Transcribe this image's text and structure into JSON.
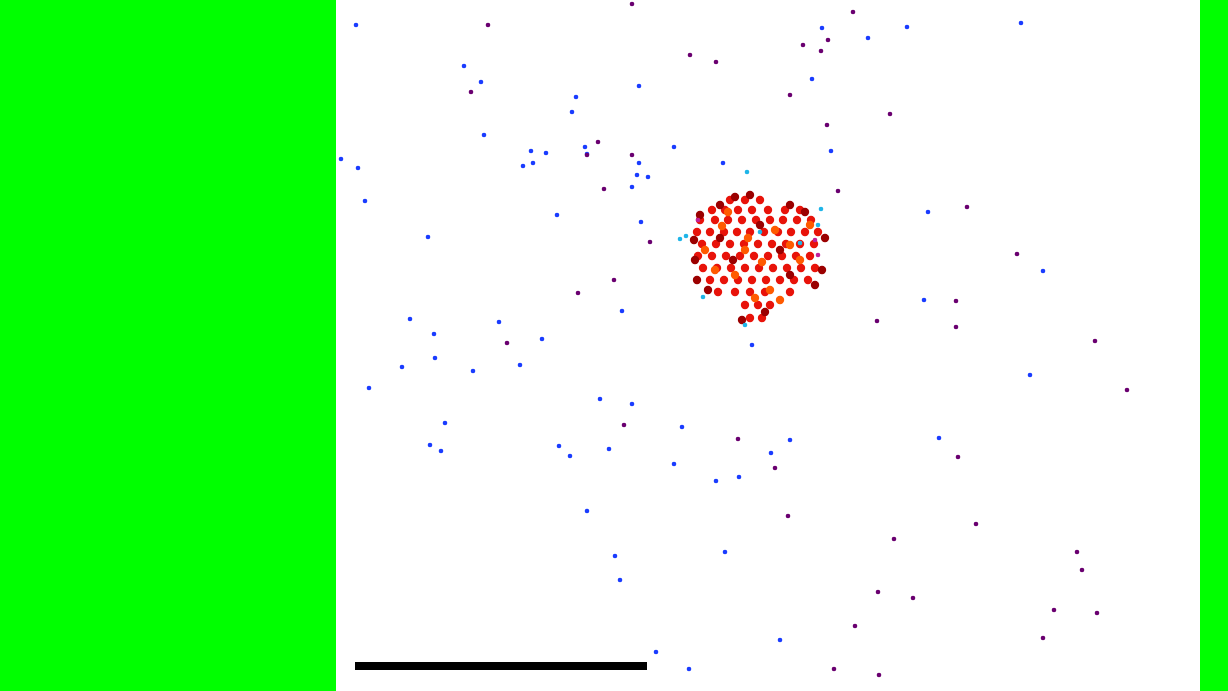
{
  "chart_data": {
    "type": "scatter",
    "xlim": [
      336,
      1200
    ],
    "ylim": [
      691,
      0
    ],
    "tick_labels": false,
    "grid": false,
    "series": [
      {
        "color": "#1a3cff",
        "marker": "dot",
        "x": [
          356,
          464,
          481,
          576,
          572,
          484,
          341,
          358,
          531,
          546,
          523,
          533,
          585,
          587,
          639,
          639,
          637,
          648,
          632,
          674,
          723,
          812,
          822,
          868,
          907,
          1021,
          831,
          365,
          428,
          557,
          641,
          622,
          410,
          434,
          499,
          542,
          435,
          402,
          473,
          520,
          369,
          445,
          430,
          441,
          559,
          570,
          600,
          632,
          609,
          682,
          674,
          716,
          739,
          771,
          790,
          587,
          615,
          620,
          725,
          656,
          689,
          780,
          752,
          928,
          924,
          1043,
          1030,
          939
        ],
        "values": [
          25,
          66,
          82,
          97,
          112,
          135,
          159,
          168,
          151,
          153,
          166,
          163,
          147,
          154,
          86,
          163,
          175,
          177,
          187,
          147,
          163,
          79,
          28,
          38,
          27,
          23,
          151,
          201,
          237,
          215,
          222,
          311,
          319,
          334,
          322,
          339,
          358,
          367,
          371,
          365,
          388,
          423,
          445,
          451,
          446,
          456,
          399,
          404,
          449,
          427,
          464,
          481,
          477,
          453,
          440,
          511,
          556,
          580,
          552,
          652,
          669,
          640,
          345,
          212,
          300,
          271,
          375,
          438
        ]
      },
      {
        "color": "#6a0070",
        "marker": "dot",
        "x": [
          488,
          632,
          690,
          716,
          803,
          828,
          821,
          853,
          790,
          827,
          890,
          471,
          598,
          587,
          632,
          604,
          838,
          967,
          650,
          614,
          578,
          1017,
          956,
          956,
          877,
          1095,
          1127,
          507,
          624,
          738,
          775,
          958,
          788,
          894,
          976,
          878,
          913,
          855,
          834,
          879,
          1077,
          1082,
          1054,
          1097,
          1043
        ],
        "values": [
          25,
          4,
          55,
          62,
          45,
          40,
          51,
          12,
          95,
          125,
          114,
          92,
          142,
          155,
          155,
          189,
          191,
          207,
          242,
          280,
          293,
          254,
          301,
          327,
          321,
          341,
          390,
          343,
          425,
          439,
          468,
          457,
          516,
          539,
          524,
          592,
          598,
          626,
          669,
          675,
          552,
          570,
          610,
          613,
          638
        ]
      },
      {
        "color": "#e8130a",
        "marker": "circle",
        "x": [
          730,
          745,
          760,
          712,
          725,
          738,
          752,
          768,
          785,
          800,
          700,
          715,
          728,
          742,
          756,
          770,
          783,
          797,
          811,
          697,
          710,
          724,
          737,
          750,
          764,
          778,
          791,
          805,
          818,
          702,
          716,
          730,
          744,
          758,
          772,
          786,
          800,
          814,
          698,
          712,
          726,
          740,
          754,
          768,
          782,
          796,
          810,
          703,
          717,
          731,
          745,
          759,
          773,
          787,
          801,
          815,
          710,
          724,
          738,
          752,
          766,
          780,
          794,
          808,
          718,
          735,
          750,
          765,
          790,
          745,
          758,
          770,
          750,
          762
        ],
        "values": [
          200,
          200,
          200,
          210,
          210,
          210,
          210,
          210,
          210,
          210,
          220,
          220,
          220,
          220,
          220,
          220,
          220,
          220,
          220,
          232,
          232,
          232,
          232,
          232,
          232,
          232,
          232,
          232,
          232,
          244,
          244,
          244,
          244,
          244,
          244,
          244,
          244,
          244,
          256,
          256,
          256,
          256,
          256,
          256,
          256,
          256,
          256,
          268,
          268,
          268,
          268,
          268,
          268,
          268,
          268,
          268,
          280,
          280,
          280,
          280,
          280,
          280,
          280,
          280,
          292,
          292,
          292,
          292,
          292,
          305,
          305,
          305,
          318,
          318
        ]
      },
      {
        "color": "#9b0000",
        "marker": "circle",
        "x": [
          735,
          750,
          720,
          700,
          694,
          695,
          697,
          825,
          822,
          815,
          805,
          790,
          742,
          765,
          708,
          760,
          733,
          780,
          720,
          790
        ],
        "values": [
          197,
          195,
          205,
          215,
          240,
          260,
          280,
          238,
          270,
          285,
          212,
          205,
          320,
          312,
          290,
          225,
          260,
          250,
          238,
          275
        ]
      },
      {
        "color": "#ff5a00",
        "marker": "circle",
        "x": [
          722,
          748,
          775,
          705,
          762,
          790,
          735,
          770,
          780,
          755,
          800,
          715,
          745,
          810,
          728
        ],
        "values": [
          226,
          238,
          230,
          250,
          262,
          245,
          275,
          290,
          300,
          298,
          260,
          270,
          250,
          225,
          212
        ]
      },
      {
        "color": "#c0209a",
        "marker": "dot",
        "x": [
          815,
          698,
          818
        ],
        "values": [
          240,
          220,
          255
        ]
      },
      {
        "color": "#1fb5e8",
        "marker": "dot",
        "x": [
          747,
          680,
          686,
          821,
          703,
          745,
          760,
          800,
          818
        ],
        "values": [
          172,
          239,
          236,
          209,
          297,
          325,
          232,
          243,
          225
        ]
      },
      {
        "type": "line",
        "color": "#000000",
        "x": [
          355,
          647
        ],
        "values": [
          666,
          666
        ]
      }
    ]
  }
}
